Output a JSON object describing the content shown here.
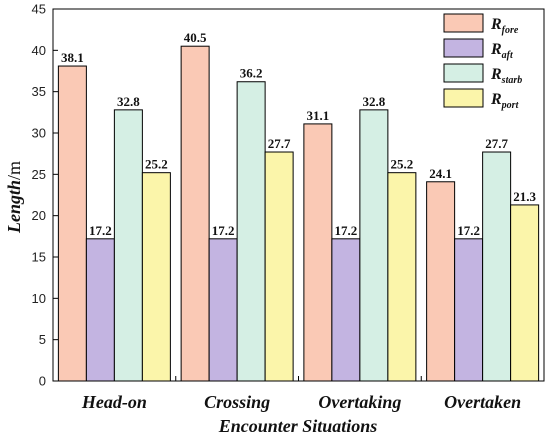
{
  "chart_data": {
    "type": "bar",
    "title": "",
    "xlabel": "Encounter Situations",
    "ylabel_main": "Length",
    "ylabel_unit": "/m",
    "ylim": [
      0,
      45
    ],
    "ytick_step": 5,
    "categories": [
      "Head-on",
      "Crossing",
      "Overtaking",
      "Overtaken"
    ],
    "series": [
      {
        "name": "R",
        "sub": "fore",
        "color": "#FAC9B5",
        "values": [
          38.1,
          40.5,
          31.1,
          24.1
        ]
      },
      {
        "name": "R",
        "sub": "aft",
        "color": "#C3B4E1",
        "values": [
          17.2,
          17.2,
          17.2,
          17.2
        ]
      },
      {
        "name": "R",
        "sub": "starb",
        "color": "#D5EFE4",
        "values": [
          32.8,
          36.2,
          32.8,
          27.7
        ]
      },
      {
        "name": "R",
        "sub": "port",
        "color": "#FBF5AA",
        "values": [
          25.2,
          27.7,
          25.2,
          21.3
        ]
      }
    ],
    "legend_placement": "top-right",
    "grid": false
  }
}
